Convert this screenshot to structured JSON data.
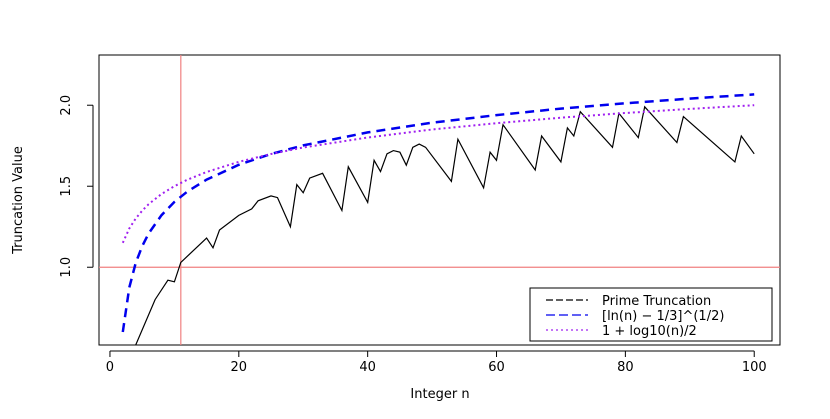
{
  "chart_data": {
    "type": "line",
    "xlabel": "Integer n",
    "ylabel": "Truncation Value",
    "xlim": [
      -1.7,
      104
    ],
    "ylim": [
      0.52,
      2.31
    ],
    "xticks": [
      0,
      20,
      40,
      60,
      80,
      100
    ],
    "yticks": [
      {
        "value": 1,
        "label": "1.0"
      },
      {
        "value": 1.5,
        "label": "1.5"
      },
      {
        "value": 2,
        "label": "2.0"
      }
    ],
    "vlines": [
      11
    ],
    "hlines": [
      1
    ],
    "refline_color": "#f08080",
    "legend": "bottomright",
    "series": [
      {
        "name": "Prime Truncation",
        "color": "#000000",
        "dash": "none",
        "width": 1.2,
        "x": [
          4,
          7,
          9,
          10,
          11,
          15,
          16,
          17,
          20,
          22,
          23,
          25,
          26,
          28,
          29,
          30,
          31,
          33,
          36,
          37,
          40,
          41,
          42,
          43,
          44,
          45,
          46,
          47,
          48,
          49,
          53,
          54,
          58,
          59,
          60,
          61,
          66,
          67,
          70,
          71,
          72,
          73,
          78,
          79,
          82,
          83,
          88,
          89,
          97,
          98,
          100
        ],
        "values": [
          0.52,
          0.8,
          0.92,
          0.91,
          1.03,
          1.18,
          1.12,
          1.23,
          1.32,
          1.36,
          1.41,
          1.44,
          1.43,
          1.25,
          1.51,
          1.46,
          1.55,
          1.58,
          1.35,
          1.62,
          1.4,
          1.66,
          1.59,
          1.7,
          1.72,
          1.71,
          1.63,
          1.74,
          1.76,
          1.74,
          1.53,
          1.79,
          1.49,
          1.71,
          1.66,
          1.88,
          1.6,
          1.81,
          1.65,
          1.86,
          1.81,
          1.96,
          1.74,
          1.95,
          1.8,
          1.99,
          1.77,
          1.93,
          1.65,
          1.81,
          1.7
        ]
      },
      {
        "name": "[ln(n) − 1/3]^(1/2)",
        "color": "#0000ee",
        "dash": "9 6",
        "width": 2.5,
        "x": [
          2,
          3,
          4,
          5,
          6,
          8,
          10,
          12,
          15,
          20,
          25,
          30,
          40,
          50,
          60,
          70,
          80,
          90,
          100
        ],
        "values": [
          0.6,
          0.875,
          1.026,
          1.13,
          1.208,
          1.321,
          1.403,
          1.467,
          1.541,
          1.632,
          1.699,
          1.752,
          1.832,
          1.892,
          1.939,
          1.979,
          2.012,
          2.041,
          2.067
        ]
      },
      {
        "name": "1 + log10(n)/2",
        "color": "#a020f0",
        "dash": "2 3",
        "width": 2,
        "x": [
          2,
          3,
          4,
          5,
          6,
          8,
          10,
          12,
          15,
          20,
          25,
          30,
          40,
          50,
          60,
          70,
          80,
          90,
          100
        ],
        "values": [
          1.151,
          1.239,
          1.301,
          1.349,
          1.389,
          1.452,
          1.5,
          1.54,
          1.588,
          1.651,
          1.699,
          1.739,
          1.801,
          1.85,
          1.889,
          1.923,
          1.952,
          1.977,
          2.0
        ]
      }
    ]
  }
}
